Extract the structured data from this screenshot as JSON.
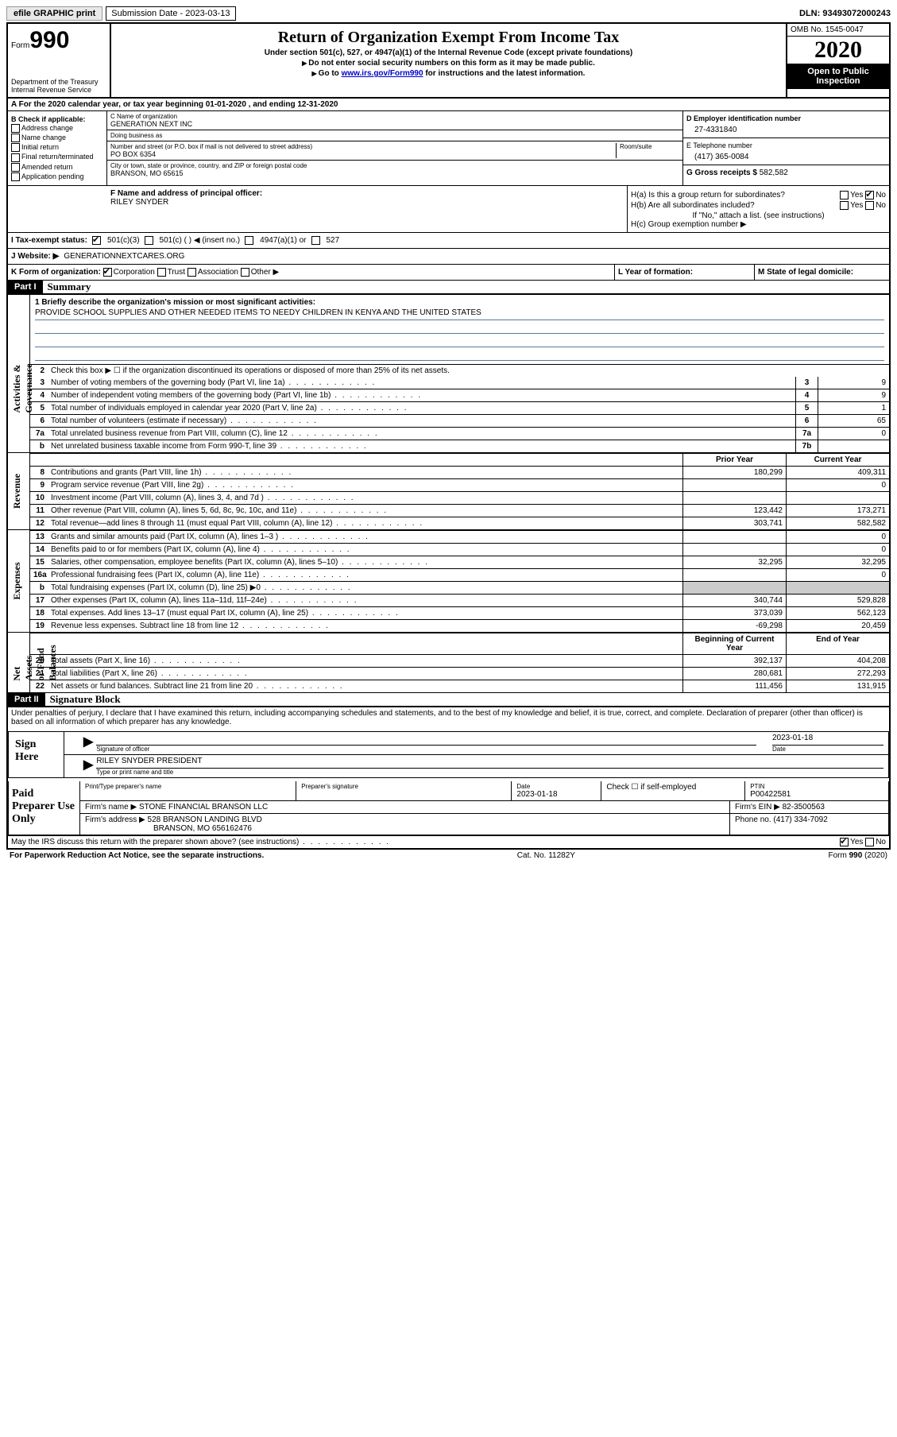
{
  "topbar": {
    "efile": "efile GRAPHIC print",
    "sub_label": "Submission Date - 2023-03-13",
    "dln": "DLN: 93493072000243"
  },
  "header": {
    "form_prefix": "Form",
    "form_number": "990",
    "dept1": "Department of the Treasury",
    "dept2": "Internal Revenue Service",
    "title": "Return of Organization Exempt From Income Tax",
    "subtitle": "Under section 501(c), 527, or 4947(a)(1) of the Internal Revenue Code (except private foundations)",
    "line1": "Do not enter social security numbers on this form as it may be made public.",
    "line2_pre": "Go to ",
    "line2_link": "www.irs.gov/Form990",
    "line2_post": " for instructions and the latest information.",
    "omb": "OMB No. 1545-0047",
    "year": "2020",
    "open": "Open to Public Inspection"
  },
  "line_a": "For the 2020 calendar year, or tax year beginning 01-01-2020   , and ending 12-31-2020",
  "col_b": {
    "header": "B Check if applicable:",
    "items": [
      "Address change",
      "Name change",
      "Initial return",
      "Final return/terminated",
      "Amended return",
      "Application pending"
    ]
  },
  "col_c": {
    "name_label": "C Name of organization",
    "name": "GENERATION NEXT INC",
    "dba_label": "Doing business as",
    "dba": "",
    "street_label": "Number and street (or P.O. box if mail is not delivered to street address)",
    "room_label": "Room/suite",
    "street": "PO BOX 6354",
    "city_label": "City or town, state or province, country, and ZIP or foreign postal code",
    "city": "BRANSON, MO  65615"
  },
  "col_d": {
    "ein_label": "D Employer identification number",
    "ein": "27-4331840",
    "phone_label": "E Telephone number",
    "phone": "(417) 365-0084",
    "gross_label": "G Gross receipts $",
    "gross": "582,582"
  },
  "row_f": {
    "label": "F  Name and address of principal officer:",
    "name": "RILEY SNYDER"
  },
  "row_h": {
    "ha": "H(a)  Is this a group return for subordinates?",
    "hb": "H(b)  Are all subordinates included?",
    "hb_note": "If \"No,\" attach a list. (see instructions)",
    "hc": "H(c)  Group exemption number ▶",
    "yes": "Yes",
    "no": "No"
  },
  "row_i": {
    "label": "I  Tax-exempt status:",
    "opt1": "501(c)(3)",
    "opt2": "501(c) (  ) ◀ (insert no.)",
    "opt3": "4947(a)(1) or",
    "opt4": "527"
  },
  "row_j": {
    "label": "J  Website: ▶",
    "value": "GENERATIONNEXTCARES.ORG"
  },
  "row_k": {
    "label": "K Form of organization:",
    "opts": [
      "Corporation",
      "Trust",
      "Association",
      "Other ▶"
    ],
    "l_label": "L Year of formation:",
    "m_label": "M State of legal domicile:"
  },
  "part1": {
    "tag": "Part I",
    "title": "Summary"
  },
  "summary": {
    "l1_label": "1  Briefly describe the organization's mission or most significant activities:",
    "l1_text": "PROVIDE SCHOOL SUPPLIES AND OTHER NEEDED ITEMS TO NEEDY CHILDREN IN KENYA AND THE UNITED STATES",
    "l2": "Check this box ▶ ☐  if the organization discontinued its operations or disposed of more than 25% of its net assets.",
    "lines": [
      {
        "n": "3",
        "t": "Number of voting members of the governing body (Part VI, line 1a)",
        "box": "3",
        "v": "9"
      },
      {
        "n": "4",
        "t": "Number of independent voting members of the governing body (Part VI, line 1b)",
        "box": "4",
        "v": "9"
      },
      {
        "n": "5",
        "t": "Total number of individuals employed in calendar year 2020 (Part V, line 2a)",
        "box": "5",
        "v": "1"
      },
      {
        "n": "6",
        "t": "Total number of volunteers (estimate if necessary)",
        "box": "6",
        "v": "65"
      },
      {
        "n": "7a",
        "t": "Total unrelated business revenue from Part VIII, column (C), line 12",
        "box": "7a",
        "v": "0"
      },
      {
        "n": "b",
        "t": "Net unrelated business taxable income from Form 990-T, line 39",
        "box": "7b",
        "v": ""
      }
    ]
  },
  "revenue": {
    "hdr_py": "Prior Year",
    "hdr_cy": "Current Year",
    "lines": [
      {
        "n": "8",
        "t": "Contributions and grants (Part VIII, line 1h)",
        "py": "180,299",
        "cy": "409,311"
      },
      {
        "n": "9",
        "t": "Program service revenue (Part VIII, line 2g)",
        "py": "",
        "cy": "0"
      },
      {
        "n": "10",
        "t": "Investment income (Part VIII, column (A), lines 3, 4, and 7d )",
        "py": "",
        "cy": ""
      },
      {
        "n": "11",
        "t": "Other revenue (Part VIII, column (A), lines 5, 6d, 8c, 9c, 10c, and 11e)",
        "py": "123,442",
        "cy": "173,271"
      },
      {
        "n": "12",
        "t": "Total revenue—add lines 8 through 11 (must equal Part VIII, column (A), line 12)",
        "py": "303,741",
        "cy": "582,582"
      }
    ]
  },
  "expenses": {
    "lines": [
      {
        "n": "13",
        "t": "Grants and similar amounts paid (Part IX, column (A), lines 1–3 )",
        "py": "",
        "cy": "0"
      },
      {
        "n": "14",
        "t": "Benefits paid to or for members (Part IX, column (A), line 4)",
        "py": "",
        "cy": "0"
      },
      {
        "n": "15",
        "t": "Salaries, other compensation, employee benefits (Part IX, column (A), lines 5–10)",
        "py": "32,295",
        "cy": "32,295"
      },
      {
        "n": "16a",
        "t": "Professional fundraising fees (Part IX, column (A), line 11e)",
        "py": "",
        "cy": "0"
      },
      {
        "n": "b",
        "t": "Total fundraising expenses (Part IX, column (D), line 25) ▶0",
        "py": "shaded",
        "cy": "shaded"
      },
      {
        "n": "17",
        "t": "Other expenses (Part IX, column (A), lines 11a–11d, 11f–24e)",
        "py": "340,744",
        "cy": "529,828"
      },
      {
        "n": "18",
        "t": "Total expenses. Add lines 13–17 (must equal Part IX, column (A), line 25)",
        "py": "373,039",
        "cy": "562,123"
      },
      {
        "n": "19",
        "t": "Revenue less expenses. Subtract line 18 from line 12",
        "py": "-69,298",
        "cy": "20,459"
      }
    ]
  },
  "netassets": {
    "hdr_py": "Beginning of Current Year",
    "hdr_cy": "End of Year",
    "lines": [
      {
        "n": "20",
        "t": "Total assets (Part X, line 16)",
        "py": "392,137",
        "cy": "404,208"
      },
      {
        "n": "21",
        "t": "Total liabilities (Part X, line 26)",
        "py": "280,681",
        "cy": "272,293"
      },
      {
        "n": "22",
        "t": "Net assets or fund balances. Subtract line 21 from line 20",
        "py": "111,456",
        "cy": "131,915"
      }
    ]
  },
  "sidebars": {
    "gov": "Activities & Governance",
    "rev": "Revenue",
    "exp": "Expenses",
    "net": "Net Assets or Fund Balances"
  },
  "part2": {
    "tag": "Part II",
    "title": "Signature Block"
  },
  "perjury": "Under penalties of perjury, I declare that I have examined this return, including accompanying schedules and statements, and to the best of my knowledge and belief, it is true, correct, and complete. Declaration of preparer (other than officer) is based on all information of which preparer has any knowledge.",
  "sign": {
    "label": "Sign Here",
    "sig_of_officer": "Signature of officer",
    "date_label": "Date",
    "date": "2023-01-18",
    "name": "RILEY SNYDER  PRESIDENT",
    "type_label": "Type or print name and title"
  },
  "paid": {
    "label": "Paid Preparer Use Only",
    "r1": {
      "c1": "Print/Type preparer's name",
      "c2": "Preparer's signature",
      "c3_label": "Date",
      "c3": "2023-01-18",
      "c4": "Check ☐ if self-employed",
      "c5_label": "PTIN",
      "c5": "P00422581"
    },
    "r2": {
      "c1_label": "Firm's name    ▶",
      "c1": "STONE FINANCIAL BRANSON LLC",
      "c2_label": "Firm's EIN ▶",
      "c2": "82-3500563"
    },
    "r3": {
      "c1_label": "Firm's address ▶",
      "c1a": "528 BRANSON LANDING BLVD",
      "c1b": "BRANSON, MO  656162476",
      "c2_label": "Phone no.",
      "c2": "(417) 334-7092"
    }
  },
  "discuss": {
    "text": "May the IRS discuss this return with the preparer shown above? (see instructions)",
    "yes": "Yes",
    "no": "No"
  },
  "footer": {
    "left": "For Paperwork Reduction Act Notice, see the separate instructions.",
    "mid": "Cat. No. 11282Y",
    "right": "Form 990 (2020)"
  }
}
